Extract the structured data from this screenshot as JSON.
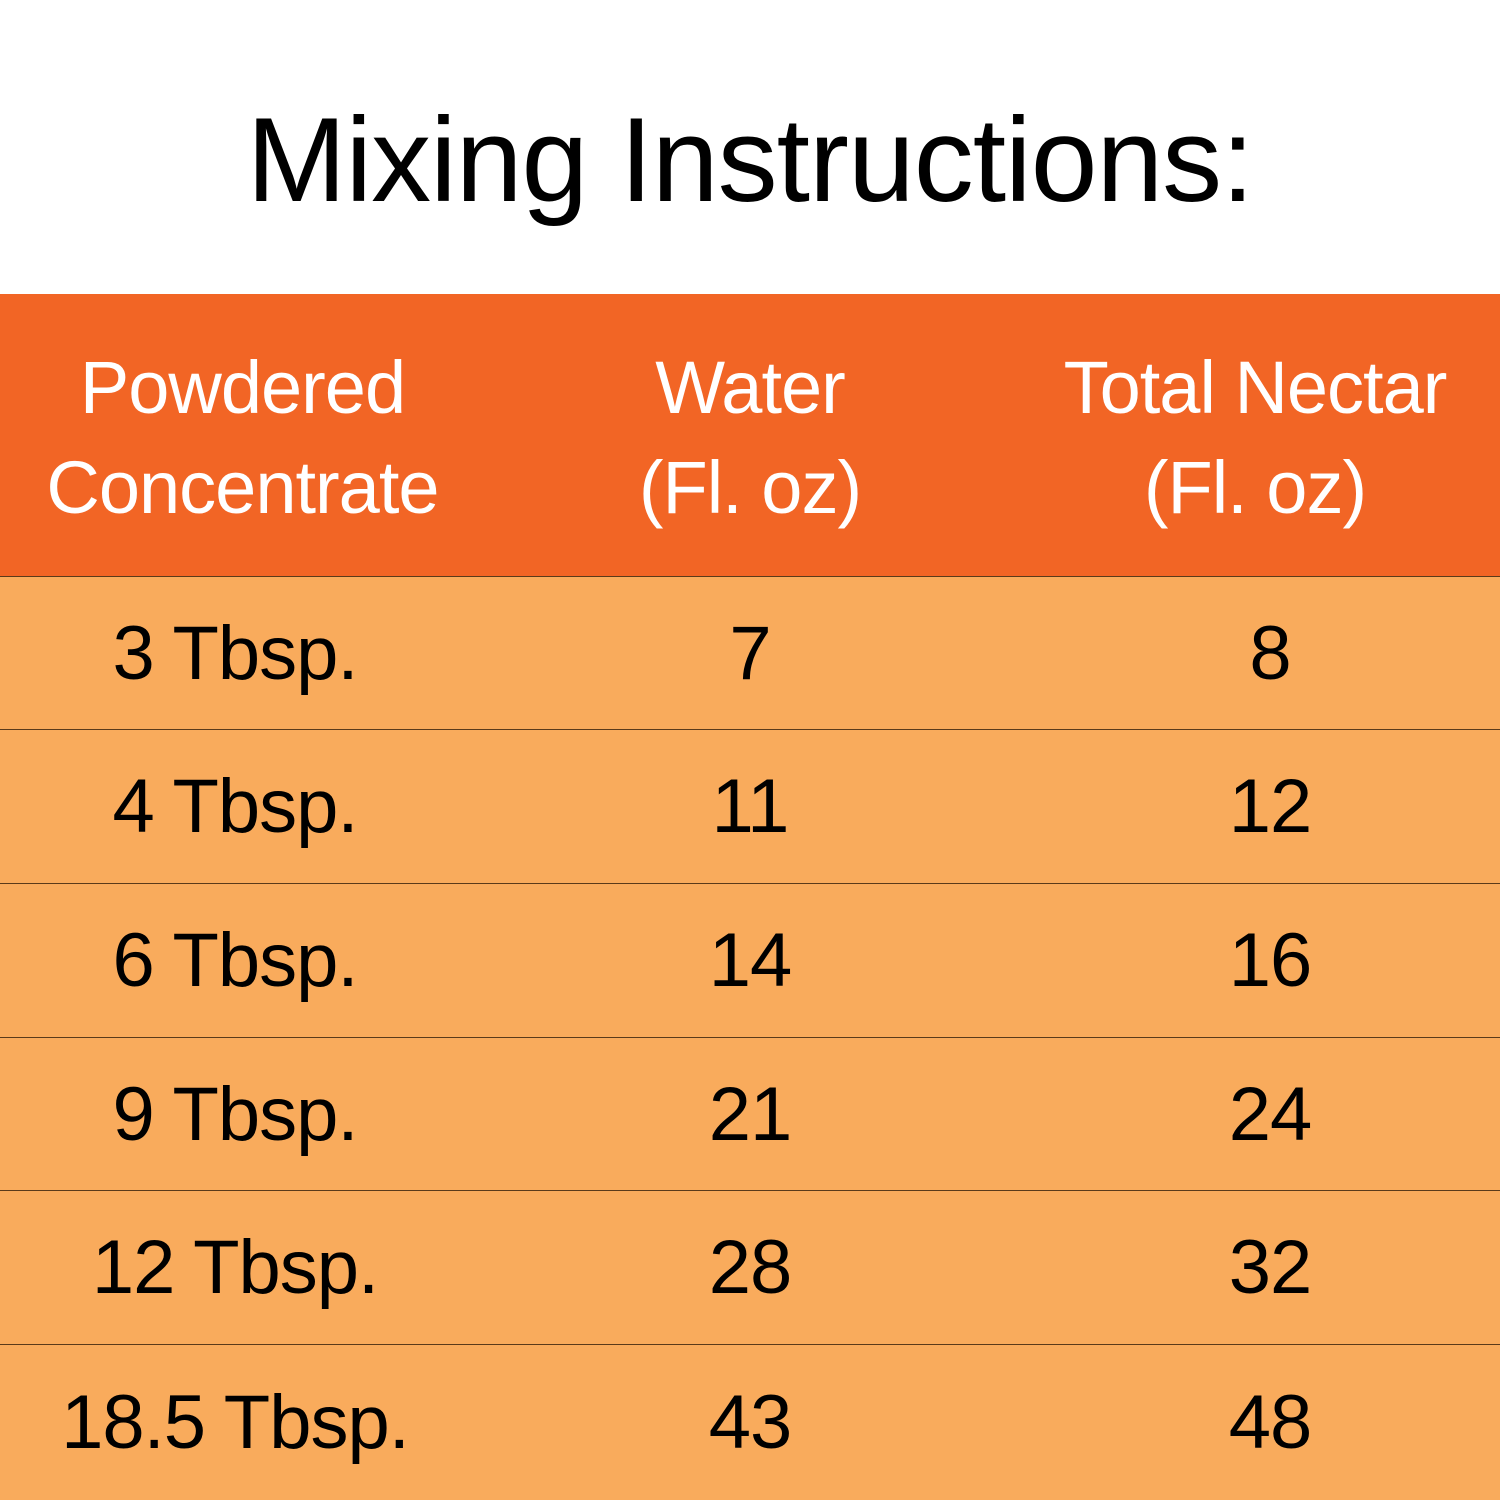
{
  "title": "Mixing Instructions:",
  "table": {
    "headers": [
      {
        "line1": "Powdered",
        "line2": "Concentrate"
      },
      {
        "line1": "Water",
        "line2": "(Fl. oz)"
      },
      {
        "line1": "Total Nectar",
        "line2": "(Fl. oz)"
      }
    ],
    "rows": [
      {
        "concentrate": "3 Tbsp.",
        "water": "7",
        "total": "8"
      },
      {
        "concentrate": "4 Tbsp.",
        "water": "11",
        "total": "12"
      },
      {
        "concentrate": "6 Tbsp.",
        "water": "14",
        "total": "16"
      },
      {
        "concentrate": "9 Tbsp.",
        "water": "21",
        "total": "24"
      },
      {
        "concentrate": "12 Tbsp.",
        "water": "28",
        "total": "32"
      },
      {
        "concentrate": "18.5 Tbsp.",
        "water": "43",
        "total": "48"
      }
    ]
  },
  "colors": {
    "header_bg": "#f26525",
    "row_bg": "#f9ab5c",
    "header_text": "#ffffff",
    "body_text": "#000000"
  }
}
